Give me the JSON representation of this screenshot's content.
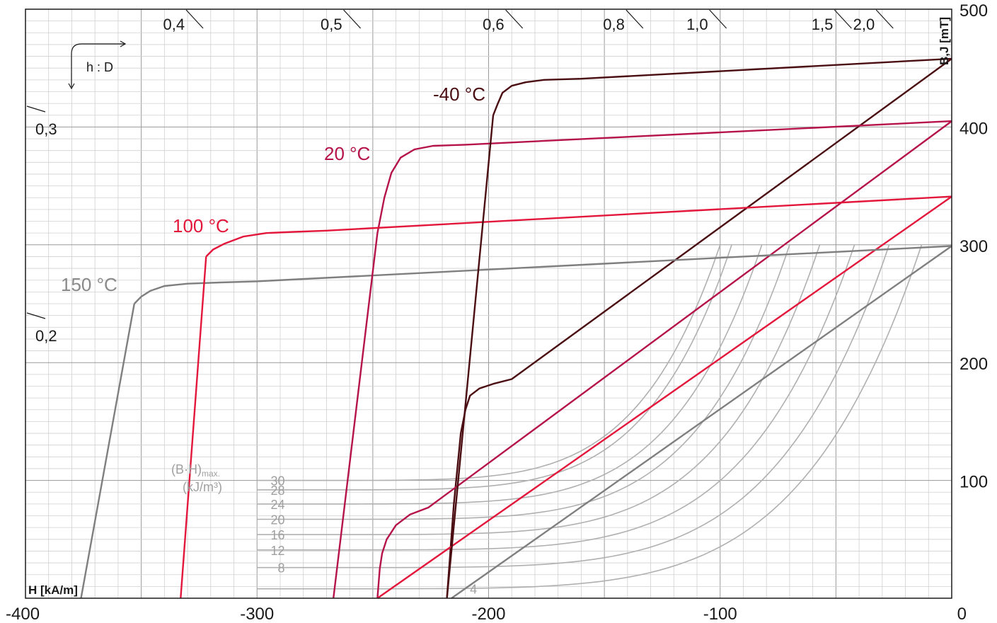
{
  "chart_data": {
    "type": "line",
    "xlabel": "H [kA/m]",
    "ylabel": "B,J [mT]",
    "xlim": [
      -400,
      0
    ],
    "ylim": [
      0,
      500
    ],
    "x_ticks": [
      "-400",
      "-300",
      "-200",
      "-100",
      "0"
    ],
    "y_ticks": [
      "100",
      "200",
      "300",
      "400",
      "500"
    ],
    "grid": true,
    "colors": {
      "m40": "#4a0d12",
      "c20": "#b5134a",
      "c100": "#e3173b",
      "c150": "#7f7f7f",
      "bh": "#b0b0b0"
    },
    "series": [
      {
        "name": "-40 °C",
        "kind": "J",
        "color": "m40",
        "points": [
          [
            -198,
            410
          ],
          [
            -196,
            420
          ],
          [
            -194,
            429
          ],
          [
            -190,
            435
          ],
          [
            -184,
            438
          ],
          [
            -176,
            440
          ],
          [
            -160,
            441
          ],
          [
            0,
            458
          ]
        ]
      },
      {
        "name": "-40 °C",
        "kind": "B",
        "color": "m40",
        "points": [
          [
            -218,
            0
          ],
          [
            -215,
            80
          ],
          [
            -212,
            140
          ],
          [
            -210,
            160
          ],
          [
            -208,
            172
          ],
          [
            -204,
            178
          ],
          [
            -198,
            182
          ],
          [
            -190,
            186
          ],
          [
            0,
            458
          ]
        ]
      },
      {
        "name": "20 °C",
        "kind": "J",
        "color": "c20",
        "points": [
          [
            -248,
            310
          ],
          [
            -245,
            340
          ],
          [
            -242,
            361
          ],
          [
            -238,
            374
          ],
          [
            -232,
            381
          ],
          [
            -224,
            384
          ],
          [
            -210,
            385
          ],
          [
            0,
            405
          ]
        ]
      },
      {
        "name": "20 °C",
        "kind": "B",
        "color": "c20",
        "points": [
          [
            -248,
            0
          ],
          [
            -247,
            25
          ],
          [
            -246,
            38
          ],
          [
            -244,
            50
          ],
          [
            -240,
            62
          ],
          [
            -234,
            71
          ],
          [
            -226,
            77
          ],
          [
            0,
            405
          ]
        ]
      },
      {
        "name": "100 °C",
        "kind": "J",
        "color": "c100",
        "points": [
          [
            -322,
            290
          ],
          [
            -319,
            296
          ],
          [
            -314,
            301
          ],
          [
            -306,
            307
          ],
          [
            -296,
            310
          ],
          [
            -284,
            311
          ],
          [
            -270,
            312
          ],
          [
            0,
            341
          ]
        ]
      },
      {
        "name": "100 °C",
        "kind": "B",
        "color": "c100",
        "points": [
          [
            -248,
            0
          ],
          [
            0,
            341
          ]
        ]
      },
      {
        "name": "150 °C",
        "kind": "J",
        "color": "c150",
        "points": [
          [
            -353,
            250
          ],
          [
            -350,
            256
          ],
          [
            -346,
            261
          ],
          [
            -340,
            265
          ],
          [
            -330,
            267
          ],
          [
            -316,
            268
          ],
          [
            -300,
            269
          ],
          [
            0,
            299
          ]
        ]
      },
      {
        "name": "150 °C",
        "kind": "B",
        "color": "c150",
        "points": [
          [
            -216,
            0
          ],
          [
            0,
            299
          ]
        ]
      }
    ],
    "bh_curves": [
      {
        "label": "30",
        "value": 30
      },
      {
        "label": "28",
        "value": 28
      },
      {
        "label": "24",
        "value": 24
      },
      {
        "label": "20",
        "value": 20
      },
      {
        "label": "16",
        "value": 16
      },
      {
        "label": "12",
        "value": 12
      },
      {
        "label": "8",
        "value": 8
      },
      {
        "label": "4",
        "value": 4
      }
    ],
    "bh_title": "(B·H)",
    "bh_title_sub": "max.",
    "bh_unit": "(kJ/m³)",
    "hd_label": "h : D",
    "permeance": [
      {
        "label": "0,4",
        "value": 0.4
      },
      {
        "label": "0,5",
        "value": 0.5
      },
      {
        "label": "0,6",
        "value": 0.6
      },
      {
        "label": "0,8",
        "value": 0.8
      },
      {
        "label": "1,0",
        "value": 1.0
      },
      {
        "label": "1,5",
        "value": 1.5
      },
      {
        "label": "2,0",
        "value": 2.0
      },
      {
        "label": "0,3",
        "value": 0.3
      },
      {
        "label": "0,2",
        "value": 0.2
      }
    ],
    "curve_labels": [
      "-40 °C",
      "20 °C",
      "100 °C",
      "150 °C"
    ]
  }
}
